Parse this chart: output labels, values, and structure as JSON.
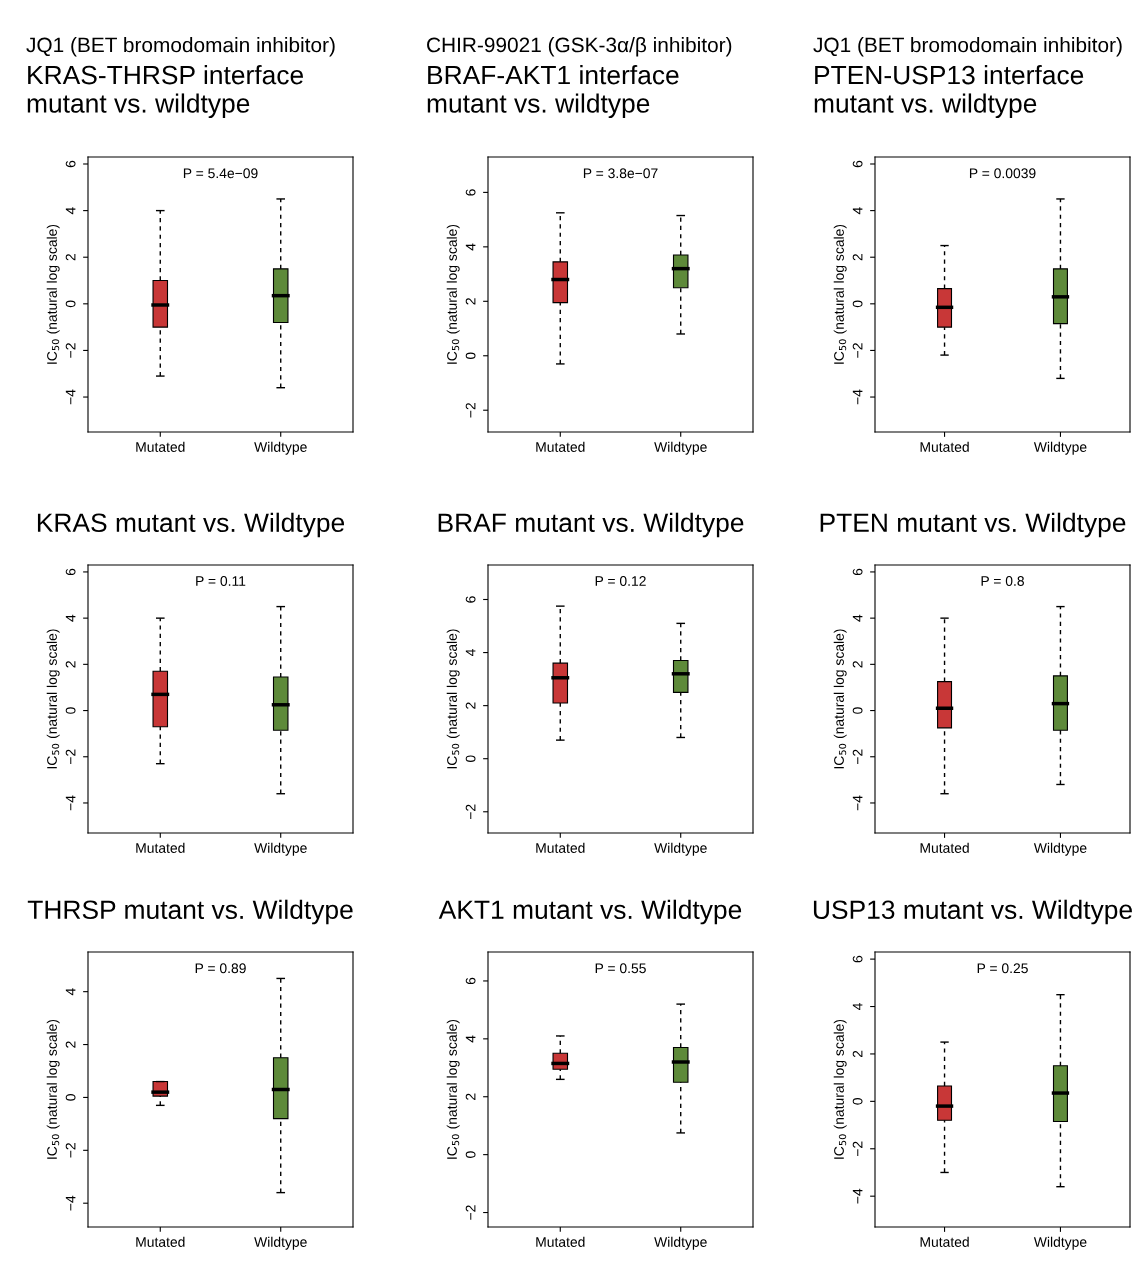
{
  "chart_data": [
    {
      "type": "box",
      "title": "JQ1 (BET bromodomain inhibitor)",
      "subtitle": "KRAS-THRSP interface\nmutant vs. wildtype",
      "ylabel": "IC$_{50}$ (natural log scale)",
      "categories": [
        "Mutated",
        "Wildtype"
      ],
      "colors": [
        "#c83737",
        "#5e8a3a"
      ],
      "ylim": [
        -5.5,
        6.3
      ],
      "yticks": [
        -4,
        -2,
        0,
        2,
        4,
        6
      ],
      "annotations": [
        "P = 5.4e−09"
      ],
      "boxes": [
        {
          "low": -3.1,
          "q1": -1.0,
          "median": -0.05,
          "q3": 1.0,
          "high": 4.0
        },
        {
          "low": -3.6,
          "q1": -0.8,
          "median": 0.35,
          "q3": 1.5,
          "high": 4.5
        }
      ]
    },
    {
      "type": "box",
      "title": "CHIR-99021 (GSK-3α/β inhibitor)",
      "subtitle": "BRAF-AKT1 interface\nmutant vs. wildtype",
      "ylabel": "IC$_{50}$ (natural log scale)",
      "categories": [
        "Mutated",
        "Wildtype"
      ],
      "colors": [
        "#c83737",
        "#5e8a3a"
      ],
      "ylim": [
        -2.8,
        7.3
      ],
      "yticks": [
        -2,
        0,
        2,
        4,
        6
      ],
      "annotations": [
        "P = 3.8e−07"
      ],
      "boxes": [
        {
          "low": -0.3,
          "q1": 1.95,
          "median": 2.8,
          "q3": 3.45,
          "high": 5.25
        },
        {
          "low": 0.8,
          "q1": 2.5,
          "median": 3.2,
          "q3": 3.7,
          "high": 5.15
        }
      ]
    },
    {
      "type": "box",
      "title": "JQ1 (BET bromodomain inhibitor)",
      "subtitle": "PTEN-USP13 interface\nmutant vs. wildtype",
      "ylabel": "IC$_{50}$ (natural log scale)",
      "categories": [
        "Mutated",
        "Wildtype"
      ],
      "colors": [
        "#c83737",
        "#5e8a3a"
      ],
      "ylim": [
        -5.5,
        6.3
      ],
      "yticks": [
        -4,
        -2,
        0,
        2,
        4,
        6
      ],
      "annotations": [
        "P = 0.0039"
      ],
      "boxes": [
        {
          "low": -2.2,
          "q1": -1.0,
          "median": -0.15,
          "q3": 0.65,
          "high": 2.5
        },
        {
          "low": -3.2,
          "q1": -0.85,
          "median": 0.3,
          "q3": 1.5,
          "high": 4.5
        }
      ]
    },
    {
      "type": "box",
      "title": "KRAS mutant vs. Wildtype",
      "ylabel": "IC$_{50}$ (natural log scale)",
      "categories": [
        "Mutated",
        "Wildtype"
      ],
      "colors": [
        "#c83737",
        "#5e8a3a"
      ],
      "ylim": [
        -5.3,
        6.3
      ],
      "yticks": [
        -4,
        -2,
        0,
        2,
        4,
        6
      ],
      "annotations": [
        "P = 0.11"
      ],
      "boxes": [
        {
          "low": -2.3,
          "q1": -0.7,
          "median": 0.7,
          "q3": 1.7,
          "high": 4.0
        },
        {
          "low": -3.6,
          "q1": -0.85,
          "median": 0.25,
          "q3": 1.45,
          "high": 4.5
        }
      ]
    },
    {
      "type": "box",
      "title": "BRAF mutant vs. Wildtype",
      "ylabel": "IC$_{50}$ (natural log scale)",
      "categories": [
        "Mutated",
        "Wildtype"
      ],
      "colors": [
        "#c83737",
        "#5e8a3a"
      ],
      "ylim": [
        -2.8,
        7.3
      ],
      "yticks": [
        -2,
        0,
        2,
        4,
        6
      ],
      "annotations": [
        "P = 0.12"
      ],
      "boxes": [
        {
          "low": 0.7,
          "q1": 2.1,
          "median": 3.05,
          "q3": 3.6,
          "high": 5.75
        },
        {
          "low": 0.8,
          "q1": 2.5,
          "median": 3.2,
          "q3": 3.7,
          "high": 5.1
        }
      ]
    },
    {
      "type": "box",
      "title": "PTEN mutant vs. Wildtype",
      "ylabel": "IC$_{50}$ (natural log scale)",
      "categories": [
        "Mutated",
        "Wildtype"
      ],
      "colors": [
        "#c83737",
        "#5e8a3a"
      ],
      "ylim": [
        -5.3,
        6.3
      ],
      "yticks": [
        -4,
        -2,
        0,
        2,
        4,
        6
      ],
      "annotations": [
        "P = 0.8"
      ],
      "boxes": [
        {
          "low": -3.6,
          "q1": -0.75,
          "median": 0.1,
          "q3": 1.25,
          "high": 4.0
        },
        {
          "low": -3.2,
          "q1": -0.85,
          "median": 0.3,
          "q3": 1.5,
          "high": 4.5
        }
      ]
    },
    {
      "type": "box",
      "title": "THRSP mutant vs. Wildtype",
      "ylabel": "IC$_{50}$ (natural log scale)",
      "categories": [
        "Mutated",
        "Wildtype"
      ],
      "colors": [
        "#c83737",
        "#5e8a3a"
      ],
      "ylim": [
        -4.9,
        5.5
      ],
      "yticks": [
        -4,
        -2,
        0,
        2,
        4
      ],
      "annotations": [
        "P = 0.89"
      ],
      "boxes": [
        {
          "low": -0.3,
          "q1": 0.05,
          "median": 0.2,
          "q3": 0.6,
          "high": 0.6
        },
        {
          "low": -3.6,
          "q1": -0.8,
          "median": 0.3,
          "q3": 1.5,
          "high": 4.5
        }
      ]
    },
    {
      "type": "box",
      "title": "AKT1 mutant vs. Wildtype",
      "ylabel": "IC$_{50}$ (natural log scale)",
      "categories": [
        "Mutated",
        "Wildtype"
      ],
      "colors": [
        "#c83737",
        "#5e8a3a"
      ],
      "ylim": [
        -2.5,
        7.0
      ],
      "yticks": [
        -2,
        0,
        2,
        4,
        6
      ],
      "annotations": [
        "P = 0.55"
      ],
      "boxes": [
        {
          "low": 2.6,
          "q1": 2.95,
          "median": 3.15,
          "q3": 3.5,
          "high": 4.1
        },
        {
          "low": 0.75,
          "q1": 2.5,
          "median": 3.2,
          "q3": 3.7,
          "high": 5.2
        }
      ]
    },
    {
      "type": "box",
      "title": "USP13 mutant vs. Wildtype",
      "ylabel": "IC$_{50}$ (natural log scale)",
      "categories": [
        "Mutated",
        "Wildtype"
      ],
      "colors": [
        "#c83737",
        "#5e8a3a"
      ],
      "ylim": [
        -5.3,
        6.3
      ],
      "yticks": [
        -4,
        -2,
        0,
        2,
        4,
        6
      ],
      "annotations": [
        "P = 0.25"
      ],
      "boxes": [
        {
          "low": -3.0,
          "q1": -0.8,
          "median": -0.2,
          "q3": 0.65,
          "high": 2.5
        },
        {
          "low": -3.6,
          "q1": -0.85,
          "median": 0.35,
          "q3": 1.5,
          "high": 4.5
        }
      ]
    }
  ]
}
